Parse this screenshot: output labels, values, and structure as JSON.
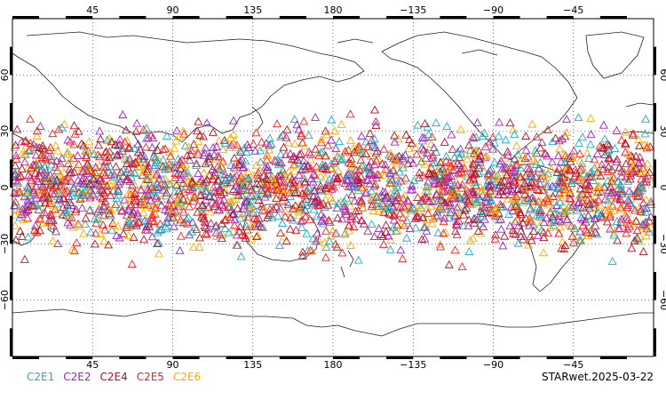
{
  "map": {
    "projection": "equirectangular, centered at 180",
    "lon_range": [
      0,
      360
    ],
    "lat_range": [
      -90,
      90
    ],
    "grid": "dotted, every 45 lon / 30 lat",
    "top_lon_labels": [
      "45",
      "90",
      "135",
      "180",
      "−135",
      "−90",
      "−45"
    ],
    "bottom_lon_labels": [
      "45",
      "90",
      "135",
      "180",
      "−135",
      "−90",
      "−45"
    ],
    "lat_labels": [
      "60",
      "30",
      "0",
      "−30",
      "−60"
    ],
    "marker": "open triangle",
    "observation_band_lat": [
      -45,
      45
    ]
  },
  "legend": {
    "items": [
      {
        "label": "C2E1",
        "color": "#17b0c4"
      },
      {
        "label": "C2E2",
        "color": "#a020c0"
      },
      {
        "label": "C2E4",
        "color": "#b01020"
      },
      {
        "label": "C2E5",
        "color": "#ff1a1a"
      },
      {
        "label": "C2E6",
        "color": "#ffaa00"
      }
    ]
  },
  "stamp": {
    "text": "STARwet.2025-03-22"
  }
}
